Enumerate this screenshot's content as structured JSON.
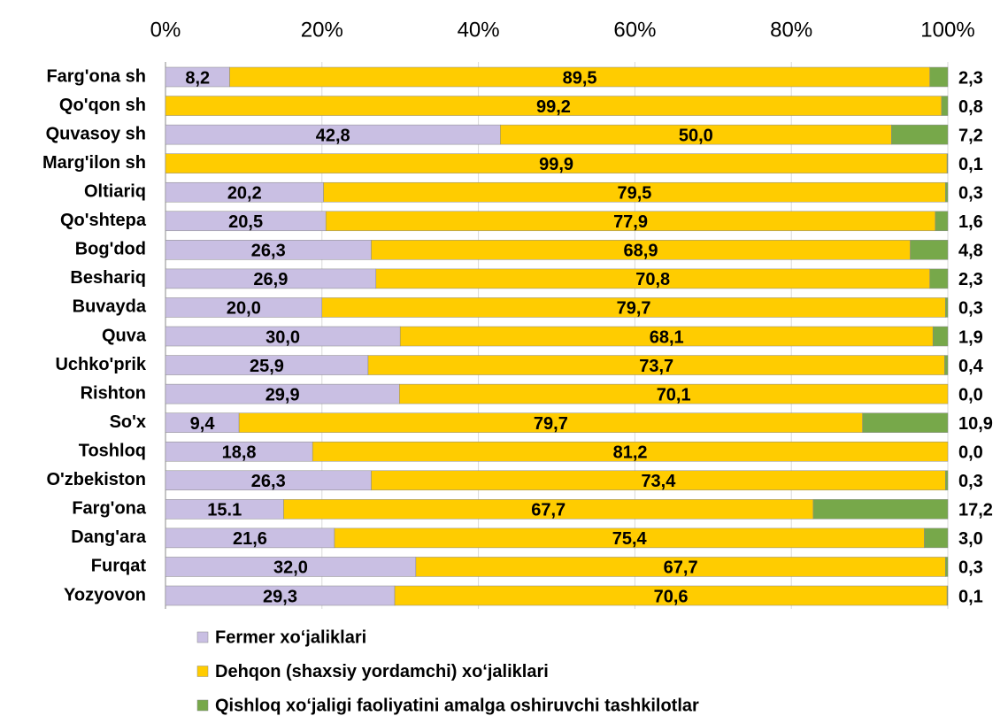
{
  "chart_data": {
    "type": "stacked_bar_horizontal",
    "categories": [
      "Farg'ona sh",
      "Qo'qon sh",
      "Quvasoy sh",
      "Marg'ilon sh",
      "Oltiariq",
      "Qo'shtepa",
      "Bog'dod",
      "Beshariq",
      "Buvayda",
      "Quva",
      "Uchko'prik",
      "Rishton",
      "So'x",
      "Toshloq",
      "O'zbekiston",
      "Farg'ona",
      "Dang'ara",
      "Furqat",
      "Yozyovon"
    ],
    "series": [
      {
        "name": "Fermer xoʻjaliklari",
        "color": "#c9bfe3",
        "values": [
          8.2,
          0.0,
          42.8,
          0.0,
          20.2,
          20.5,
          26.3,
          26.9,
          20.0,
          30.0,
          25.9,
          29.9,
          9.4,
          18.8,
          26.3,
          15.1,
          21.6,
          32.0,
          29.3
        ],
        "value_labels": [
          "8,2",
          "0,0",
          "42,8",
          "0,0",
          "20,2",
          "20,5",
          "26,3",
          "26,9",
          "20,0",
          "30,0",
          "25,9",
          "29,9",
          "9,4",
          "18,8",
          "26,3",
          "15.1",
          "21,6",
          "32,0",
          "29,3"
        ]
      },
      {
        "name": "Dehqon (shaxsiy yordamchi) xoʻjaliklari",
        "color": "#ffcc00",
        "values": [
          89.5,
          99.2,
          50.0,
          99.9,
          79.5,
          77.9,
          68.9,
          70.8,
          79.7,
          68.1,
          73.7,
          70.1,
          79.7,
          81.2,
          73.4,
          67.7,
          75.4,
          67.7,
          70.6
        ],
        "value_labels": [
          "89,5",
          "99,2",
          "50,0",
          "99,9",
          "79,5",
          "77,9",
          "68,9",
          "70,8",
          "79,7",
          "68,1",
          "73,7",
          "70,1",
          "79,7",
          "81,2",
          "73,4",
          "67,7",
          "75,4",
          "67,7",
          "70,6"
        ]
      },
      {
        "name": "Qishloq xoʻjaligi faoliyatini amalga oshiruvchi tashkilotlar",
        "color": "#77a84a",
        "values": [
          2.3,
          0.8,
          7.2,
          0.1,
          0.3,
          1.6,
          4.8,
          2.3,
          0.3,
          1.9,
          0.4,
          0.0,
          10.9,
          0.0,
          0.3,
          17.2,
          3.0,
          0.3,
          0.1
        ],
        "value_labels": [
          "2,3",
          "0,8",
          "7,2",
          "0,1",
          "0,3",
          "1,6",
          "4,8",
          "2,3",
          "0,3",
          "1,9",
          "0,4",
          "0,0",
          "10,9",
          "0,0",
          "0,3",
          "17,2",
          "3,0",
          "0,3",
          "0,1"
        ]
      }
    ],
    "xlim": [
      0,
      100
    ],
    "xticks": [
      {
        "value": 0,
        "label": "0%"
      },
      {
        "value": 20,
        "label": "20%"
      },
      {
        "value": 40,
        "label": "40%"
      },
      {
        "value": 60,
        "label": "60%"
      },
      {
        "value": 80,
        "label": "80%"
      },
      {
        "value": 100,
        "label": "100%"
      }
    ],
    "grid": true,
    "legend": "bottom"
  }
}
